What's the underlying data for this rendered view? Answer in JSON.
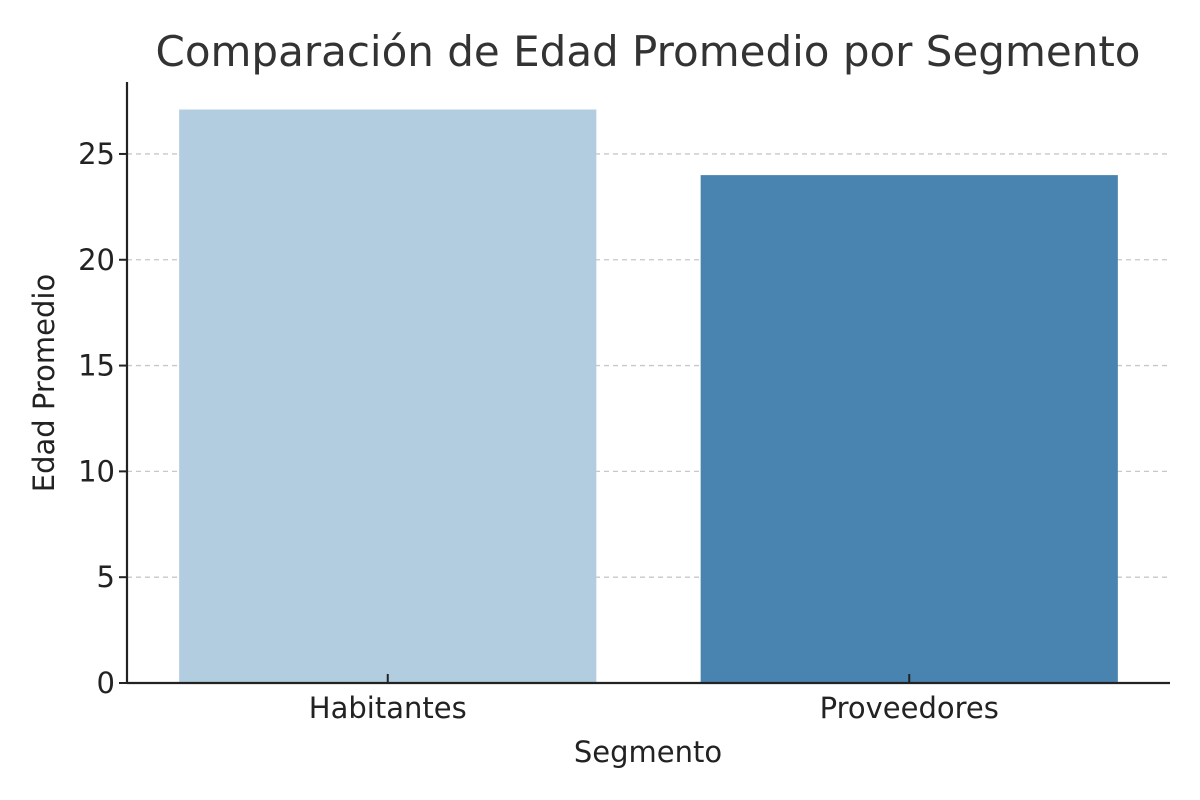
{
  "chart_data": {
    "type": "bar",
    "title": "Comparación de Edad Promedio por Segmento",
    "xlabel": "Segmento",
    "ylabel": "Edad Promedio",
    "categories": [
      "Habitantes",
      "Proveedores"
    ],
    "values": [
      27.1,
      24.0
    ],
    "bar_colors": [
      "#b3cde0",
      "#4984b0"
    ],
    "ylim": [
      0,
      28.4
    ],
    "yticks": [
      0,
      5,
      10,
      15,
      20,
      25
    ],
    "grid": true,
    "grid_axis": "y",
    "legend": "none"
  }
}
